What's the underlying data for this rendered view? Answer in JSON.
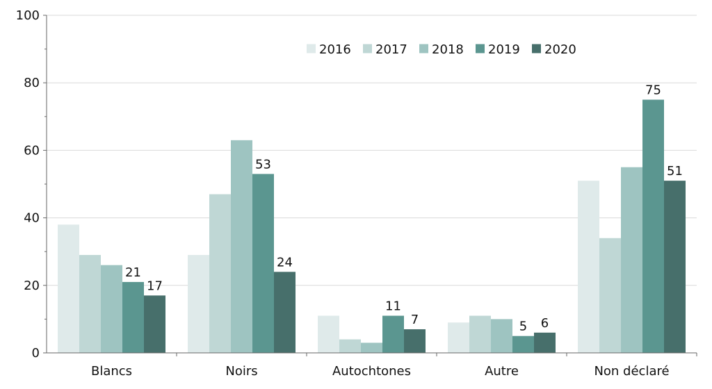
{
  "chart_data": {
    "type": "bar",
    "categories": [
      "Blancs",
      "Noirs",
      "Autochtones",
      "Autre",
      "Non déclaré"
    ],
    "series": [
      {
        "name": "2016",
        "color": "#dfeaea",
        "values": [
          38,
          29,
          11,
          9,
          51
        ]
      },
      {
        "name": "2017",
        "color": "#bfd7d5",
        "values": [
          29,
          47,
          4,
          11,
          34
        ]
      },
      {
        "name": "2018",
        "color": "#9ec4c1",
        "values": [
          26,
          63,
          3,
          10,
          55
        ]
      },
      {
        "name": "2019",
        "color": "#5b9690",
        "values": [
          21,
          53,
          11,
          5,
          75
        ]
      },
      {
        "name": "2020",
        "color": "#476f6b",
        "values": [
          17,
          24,
          7,
          6,
          51
        ]
      }
    ],
    "data_labels": [
      {
        "category": 0,
        "series": 3,
        "text": "21"
      },
      {
        "category": 0,
        "series": 4,
        "text": "17"
      },
      {
        "category": 1,
        "series": 3,
        "text": "53"
      },
      {
        "category": 1,
        "series": 4,
        "text": "24"
      },
      {
        "category": 2,
        "series": 3,
        "text": "11"
      },
      {
        "category": 2,
        "series": 4,
        "text": "7"
      },
      {
        "category": 3,
        "series": 3,
        "text": "5"
      },
      {
        "category": 3,
        "series": 4,
        "text": "6"
      },
      {
        "category": 4,
        "series": 3,
        "text": "75"
      },
      {
        "category": 4,
        "series": 4,
        "text": "51"
      }
    ],
    "yticks": [
      0,
      20,
      40,
      60,
      80,
      100
    ],
    "ylim": [
      0,
      100
    ],
    "grid": true,
    "legend": "top-right",
    "title": "",
    "xlabel": "",
    "ylabel": ""
  }
}
